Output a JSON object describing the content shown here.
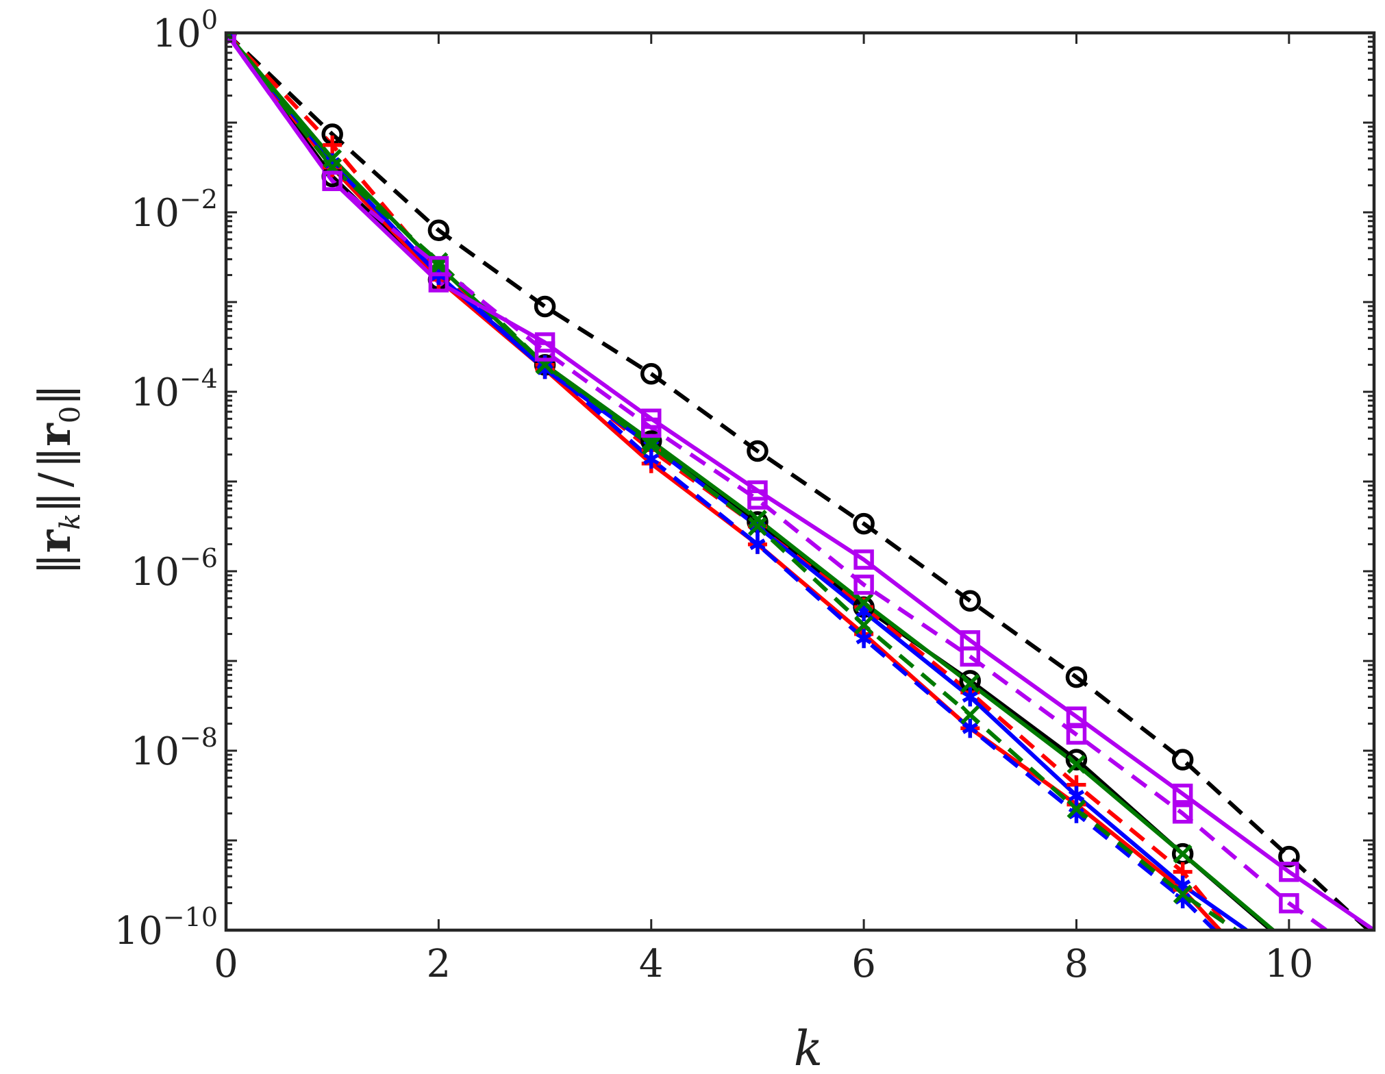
{
  "chart_data": {
    "type": "line",
    "title": "",
    "xlabel": "k",
    "ylabel_parts": [
      "‖",
      "r",
      "k",
      "‖",
      "/",
      "‖",
      "r",
      "0",
      "‖"
    ],
    "xlim": [
      0,
      10.8
    ],
    "ylim_exp": [
      -10,
      0
    ],
    "yscale": "log",
    "grid": false,
    "legend": "none",
    "x_ticks": [
      {
        "value": 0,
        "label": "0"
      },
      {
        "value": 2,
        "label": "2"
      },
      {
        "value": 4,
        "label": "4"
      },
      {
        "value": 6,
        "label": "6"
      },
      {
        "value": 8,
        "label": "8"
      },
      {
        "value": 10,
        "label": "10"
      }
    ],
    "y_ticks": [
      {
        "exp": 0,
        "base": "10",
        "sup": "0"
      },
      {
        "exp": -2,
        "base": "10",
        "sup": "−2"
      },
      {
        "exp": -4,
        "base": "10",
        "sup": "−4"
      },
      {
        "exp": -6,
        "base": "10",
        "sup": "−6"
      },
      {
        "exp": -8,
        "base": "10",
        "sup": "−8"
      },
      {
        "exp": -10,
        "base": "10",
        "sup": "−10"
      }
    ],
    "series": [
      {
        "color": "#000000",
        "dash": "dashed",
        "marker": "circle",
        "x": [
          0,
          1,
          2,
          3,
          4,
          5,
          6,
          7,
          8,
          9,
          10,
          10.75
        ],
        "y": [
          0,
          -1.13,
          -2.2,
          -3.05,
          -3.8,
          -4.66,
          -5.47,
          -6.33,
          -7.18,
          -8.1,
          -9.18,
          -10
        ]
      },
      {
        "color": "#000000",
        "dash": "solid",
        "marker": "circle",
        "x": [
          0,
          1,
          2,
          3,
          4,
          5,
          6,
          7,
          8,
          9,
          9.83
        ],
        "y": [
          0,
          -1.6,
          -2.75,
          -3.7,
          -4.55,
          -5.45,
          -6.4,
          -7.22,
          -8.1,
          -9.15,
          -10
        ]
      },
      {
        "color": "#ff0000",
        "dash": "dashed",
        "marker": "plus",
        "x": [
          0,
          1,
          2,
          3,
          4,
          5,
          6,
          7,
          8,
          9,
          9.45
        ],
        "y": [
          0,
          -1.25,
          -2.65,
          -3.7,
          -4.65,
          -5.5,
          -6.4,
          -7.35,
          -8.38,
          -9.35,
          -10
        ]
      },
      {
        "color": "#ff0000",
        "dash": "solid",
        "marker": "plus",
        "x": [
          0,
          1,
          2,
          3,
          4,
          5,
          6,
          7,
          8,
          9,
          9.35
        ],
        "y": [
          0,
          -1.5,
          -2.75,
          -3.75,
          -4.8,
          -5.7,
          -6.7,
          -7.75,
          -8.6,
          -9.55,
          -10
        ]
      },
      {
        "color": "#0000ff",
        "dash": "dashed",
        "marker": "asterisk",
        "x": [
          0,
          1,
          2,
          3,
          4,
          5,
          6,
          7,
          8,
          9,
          9.3
        ],
        "y": [
          0,
          -1.45,
          -2.7,
          -3.7,
          -4.75,
          -5.7,
          -6.75,
          -7.75,
          -8.7,
          -9.65,
          -10
        ]
      },
      {
        "color": "#0000ff",
        "dash": "solid",
        "marker": "asterisk",
        "x": [
          0,
          1,
          2,
          3,
          4,
          5,
          6,
          7,
          8,
          9,
          9.6
        ],
        "y": [
          0,
          -1.45,
          -2.7,
          -3.75,
          -4.6,
          -5.5,
          -6.45,
          -7.4,
          -8.5,
          -9.5,
          -10
        ]
      },
      {
        "color": "#007a00",
        "dash": "dashed",
        "marker": "cross",
        "x": [
          0,
          1,
          2,
          3,
          4,
          5,
          6,
          7,
          8,
          9,
          9.5
        ],
        "y": [
          0,
          -1.5,
          -2.55,
          -3.7,
          -4.6,
          -5.5,
          -6.6,
          -7.6,
          -8.65,
          -9.6,
          -10
        ]
      },
      {
        "color": "#007a00",
        "dash": "solid",
        "marker": "cross",
        "x": [
          0,
          1,
          2,
          3,
          4,
          5,
          6,
          7,
          8,
          9,
          9.85
        ],
        "y": [
          0,
          -1.4,
          -2.6,
          -3.7,
          -4.55,
          -5.42,
          -6.35,
          -7.25,
          -8.15,
          -9.15,
          -10
        ]
      },
      {
        "color": "#b100f0",
        "dash": "dashed",
        "marker": "square",
        "x": [
          0,
          1,
          2,
          3,
          4,
          5,
          6,
          7,
          8,
          9,
          10,
          10.35
        ],
        "y": [
          0,
          -1.65,
          -2.6,
          -3.55,
          -4.4,
          -5.2,
          -6.15,
          -6.95,
          -7.82,
          -8.7,
          -9.7,
          -10
        ]
      },
      {
        "color": "#b100f0",
        "dash": "solid",
        "marker": "square",
        "x": [
          0,
          1,
          2,
          3,
          4,
          5,
          6,
          7,
          8,
          9,
          10,
          10.8
        ],
        "y": [
          0,
          -1.65,
          -2.78,
          -3.45,
          -4.3,
          -5.1,
          -5.87,
          -6.77,
          -7.62,
          -8.48,
          -9.35,
          -10
        ]
      }
    ]
  }
}
